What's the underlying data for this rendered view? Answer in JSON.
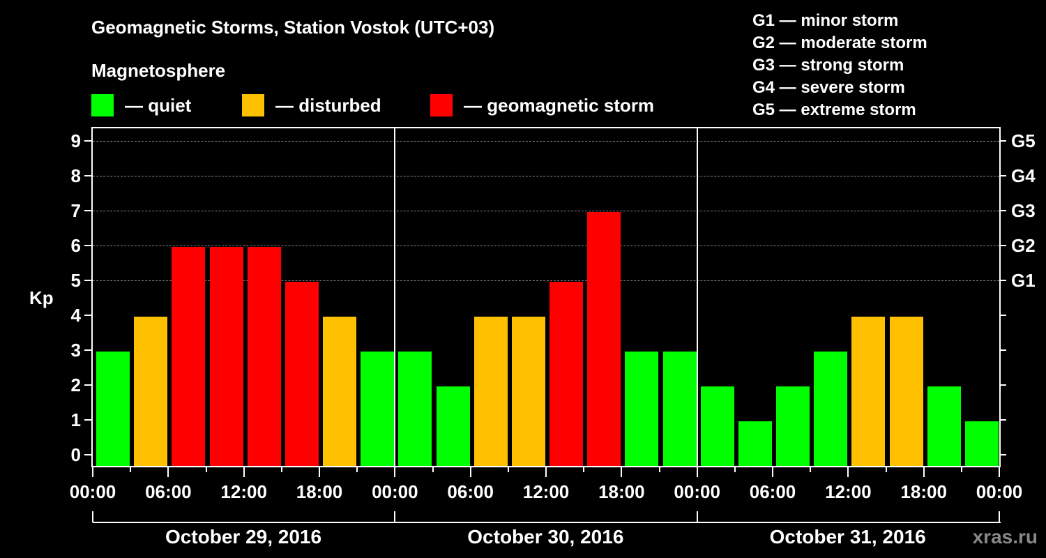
{
  "header": {
    "title": "Geomagnetic Storms, Station Vostok (UTC+03)",
    "subtitle": "Magnetosphere"
  },
  "legend": [
    {
      "label": "— quiet",
      "color": "#00ff00"
    },
    {
      "label": "— disturbed",
      "color": "#ffc000"
    },
    {
      "label": "— geomagnetic storm",
      "color": "#ff0000"
    }
  ],
  "g_legend": [
    "G1 — minor storm",
    "G2 — moderate storm",
    "G3 — strong storm",
    "G4 — severe storm",
    "G5 — extreme storm"
  ],
  "axis": {
    "ylabel": "Kp",
    "y_ticks": [
      "0",
      "1",
      "2",
      "3",
      "4",
      "5",
      "6",
      "7",
      "8",
      "9"
    ],
    "g_ticks": [
      {
        "label": "G1",
        "kp": 5
      },
      {
        "label": "G2",
        "kp": 6
      },
      {
        "label": "G3",
        "kp": 7
      },
      {
        "label": "G4",
        "kp": 8
      },
      {
        "label": "G5",
        "kp": 9
      }
    ],
    "x_ticks": [
      "00:00",
      "06:00",
      "12:00",
      "18:00",
      "00:00",
      "06:00",
      "12:00",
      "18:00",
      "00:00",
      "06:00",
      "12:00",
      "18:00",
      "00:00"
    ],
    "dates": [
      "October 29, 2016",
      "October 30, 2016",
      "October 31, 2016"
    ]
  },
  "credit": "xras.ru",
  "chart_data": {
    "type": "bar",
    "title": "Geomagnetic Storms, Station Vostok (UTC+03)",
    "xlabel": "",
    "ylabel": "Kp",
    "ylim": [
      0,
      9
    ],
    "grid": "dashed horizontal at Kp 5-9",
    "legend": {
      "quiet": "#00ff00",
      "disturbed": "#ffc000",
      "geomagnetic storm": "#ff0000"
    },
    "interval_hours": 3,
    "series": [
      {
        "name": "October 29, 2016",
        "values": [
          3,
          4,
          6,
          6,
          6,
          5,
          4,
          3
        ],
        "status": [
          "quiet",
          "disturbed",
          "storm",
          "storm",
          "storm",
          "storm",
          "disturbed",
          "quiet"
        ]
      },
      {
        "name": "October 30, 2016",
        "values": [
          3,
          2,
          4,
          4,
          5,
          7,
          3,
          3
        ],
        "status": [
          "quiet",
          "quiet",
          "disturbed",
          "disturbed",
          "storm",
          "storm",
          "quiet",
          "quiet"
        ]
      },
      {
        "name": "October 31, 2016",
        "values": [
          2,
          1,
          2,
          3,
          4,
          4,
          2,
          1
        ],
        "status": [
          "quiet",
          "quiet",
          "quiet",
          "quiet",
          "disturbed",
          "disturbed",
          "quiet",
          "quiet"
        ]
      }
    ],
    "categories": [
      "00-03",
      "03-06",
      "06-09",
      "09-12",
      "12-15",
      "15-18",
      "18-21",
      "21-24"
    ],
    "right_axis": {
      "G1": 5,
      "G2": 6,
      "G3": 7,
      "G4": 8,
      "G5": 9
    }
  }
}
